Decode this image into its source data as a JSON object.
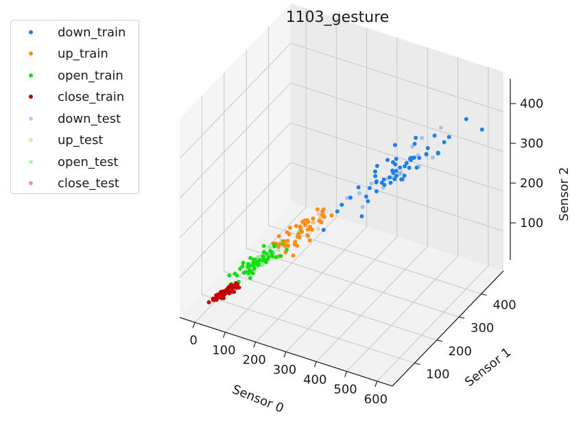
{
  "chart_data": {
    "type": "scatter",
    "projection": "3d",
    "title": "1103_gesture",
    "xlabel": "Sensor 0",
    "ylabel": "Sensor 1",
    "zlabel": "Sensor 2",
    "xticks": [
      "0",
      "100",
      "200",
      "300",
      "400",
      "500",
      "600"
    ],
    "yticks": [
      "100",
      "200",
      "300",
      "400"
    ],
    "zticks": [
      "100",
      "200",
      "300",
      "400"
    ],
    "xlim": [
      -50,
      650
    ],
    "ylim": [
      0,
      500
    ],
    "zlim": [
      0,
      500
    ],
    "grid": true,
    "legend_position": "outside-top-left",
    "series": [
      {
        "name": "down_train",
        "color": "#1f7fe8",
        "alpha": 1.0,
        "centroid": [
          460,
          300,
          330
        ],
        "spread": [
          70,
          80,
          45
        ],
        "count": 55,
        "seed": 11
      },
      {
        "name": "up_train",
        "color": "#ff8c1a",
        "alpha": 1.0,
        "centroid": [
          230,
          150,
          190
        ],
        "spread": [
          40,
          35,
          25
        ],
        "count": 55,
        "seed": 23
      },
      {
        "name": "open_train",
        "color": "#12e012",
        "alpha": 1.0,
        "centroid": [
          130,
          110,
          120
        ],
        "spread": [
          35,
          30,
          20
        ],
        "count": 55,
        "seed": 37
      },
      {
        "name": "close_train",
        "color": "#c40000",
        "alpha": 1.0,
        "centroid": [
          55,
          55,
          55
        ],
        "spread": [
          20,
          18,
          10
        ],
        "count": 55,
        "seed": 51
      },
      {
        "name": "down_test",
        "color": "#1f7fe8",
        "alpha": 0.35,
        "centroid": [
          440,
          290,
          320
        ],
        "spread": [
          75,
          85,
          45
        ],
        "count": 16,
        "seed": 61
      },
      {
        "name": "up_test",
        "color": "#ff8c1a",
        "alpha": 0.35,
        "centroid": [
          300,
          180,
          240
        ],
        "spread": [
          35,
          25,
          25
        ],
        "count": 8,
        "seed": 71
      },
      {
        "name": "open_test",
        "color": "#12e012",
        "alpha": 0.35,
        "centroid": [
          145,
          115,
          135
        ],
        "spread": [
          30,
          25,
          20
        ],
        "count": 14,
        "seed": 83
      },
      {
        "name": "close_test",
        "color": "#c40000",
        "alpha": 0.4,
        "centroid": [
          45,
          50,
          50
        ],
        "spread": [
          15,
          15,
          10
        ],
        "count": 12,
        "seed": 97
      }
    ]
  }
}
